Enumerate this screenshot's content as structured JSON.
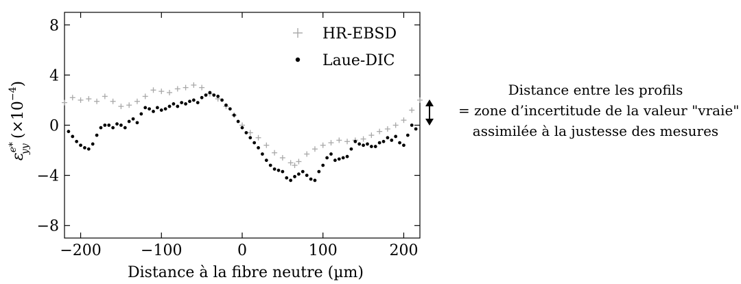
{
  "chart_data": {
    "type": "scatter",
    "title": "",
    "xlabel": "Distance à la fibre neutre (µm)",
    "ylabel_base": "ε",
    "ylabel_sup": "e*",
    "ylabel_sub": "yy",
    "ylabel_unit": " (×10",
    "ylabel_unit_exp": "−4",
    "ylabel_unit_close": ")",
    "xlim": [
      -220,
      220
    ],
    "ylim": [
      -9,
      9
    ],
    "xticks": [
      -200,
      -100,
      0,
      100,
      200
    ],
    "xtick_labels": [
      "−200",
      "−100",
      "0",
      "100",
      "200"
    ],
    "yticks": [
      -8,
      -4,
      0,
      4,
      8
    ],
    "ytick_labels": [
      "−8",
      "−4",
      "0",
      "4",
      "8"
    ],
    "legend_position": "top-right",
    "grid": false,
    "series": [
      {
        "name": "HR-EBSD",
        "marker": "plus",
        "color": "#a8a8a8",
        "x": [
          -220,
          -210,
          -200,
          -190,
          -180,
          -170,
          -160,
          -150,
          -140,
          -130,
          -120,
          -110,
          -100,
          -90,
          -80,
          -70,
          -60,
          -50,
          -40,
          -30,
          -20,
          -10,
          0,
          10,
          20,
          30,
          40,
          50,
          60,
          65,
          70,
          80,
          90,
          100,
          110,
          120,
          130,
          140,
          150,
          160,
          170,
          180,
          190,
          200,
          210,
          220
        ],
        "y": [
          1.8,
          2.2,
          2.0,
          2.1,
          1.9,
          2.3,
          1.9,
          1.5,
          1.6,
          1.9,
          2.3,
          2.8,
          2.7,
          2.6,
          2.9,
          3.0,
          3.2,
          3.0,
          2.5,
          2.1,
          1.5,
          0.8,
          0.0,
          -0.6,
          -1.0,
          -1.6,
          -2.2,
          -2.6,
          -3.0,
          -3.2,
          -2.9,
          -2.3,
          -1.9,
          -1.6,
          -1.4,
          -1.2,
          -1.3,
          -1.2,
          -1.1,
          -0.8,
          -0.5,
          -0.3,
          0.0,
          0.4,
          1.2,
          2.0
        ]
      },
      {
        "name": "Laue-DIC",
        "marker": "dot",
        "color": "#000000",
        "x": [
          -215,
          -210,
          -205,
          -200,
          -195,
          -190,
          -185,
          -180,
          -175,
          -170,
          -165,
          -160,
          -155,
          -150,
          -145,
          -140,
          -135,
          -130,
          -125,
          -120,
          -115,
          -110,
          -105,
          -100,
          -95,
          -90,
          -85,
          -80,
          -75,
          -70,
          -65,
          -60,
          -55,
          -50,
          -45,
          -40,
          -35,
          -30,
          -25,
          -20,
          -15,
          -10,
          -5,
          0,
          5,
          10,
          15,
          20,
          25,
          30,
          35,
          40,
          45,
          50,
          55,
          60,
          65,
          70,
          75,
          80,
          85,
          90,
          95,
          100,
          105,
          110,
          115,
          120,
          125,
          130,
          135,
          140,
          145,
          150,
          155,
          160,
          165,
          170,
          175,
          180,
          185,
          190,
          195,
          200,
          205,
          210,
          215
        ],
        "y": [
          -0.5,
          -0.9,
          -1.3,
          -1.6,
          -1.8,
          -1.9,
          -1.5,
          -0.8,
          -0.2,
          0.0,
          0.0,
          -0.2,
          0.1,
          0.0,
          -0.2,
          0.3,
          0.5,
          0.2,
          0.9,
          1.4,
          1.3,
          1.1,
          1.4,
          1.2,
          1.3,
          1.5,
          1.7,
          1.5,
          1.8,
          1.7,
          1.9,
          2.0,
          1.8,
          2.2,
          2.4,
          2.6,
          2.4,
          2.3,
          2.0,
          1.6,
          1.3,
          0.8,
          0.3,
          -0.2,
          -0.6,
          -1.0,
          -1.4,
          -1.8,
          -2.3,
          -2.8,
          -3.2,
          -3.5,
          -3.6,
          -3.7,
          -4.2,
          -4.4,
          -4.1,
          -3.9,
          -3.7,
          -4.0,
          -4.3,
          -4.4,
          -3.7,
          -3.2,
          -2.6,
          -2.3,
          -2.8,
          -2.7,
          -2.6,
          -2.5,
          -1.9,
          -1.3,
          -1.5,
          -1.6,
          -1.5,
          -1.7,
          -1.7,
          -1.4,
          -1.3,
          -1.0,
          -1.2,
          -0.9,
          -1.4,
          -1.6,
          -0.8,
          0.0,
          -0.3
        ]
      }
    ],
    "annotation_lines": [
      "Distance entre les profils",
      "= zone d’incertitude de la valeur \"vraie\"",
      "assimilée à la justesse des mesures"
    ],
    "annotation_symbol": "↕"
  }
}
